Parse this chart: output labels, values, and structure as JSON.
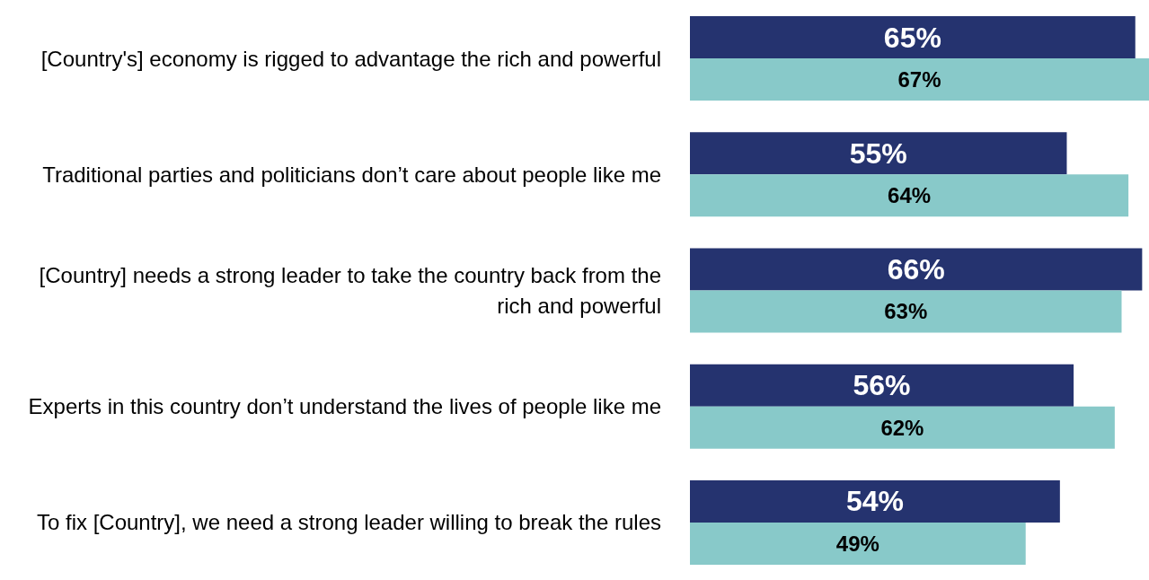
{
  "chart_data": {
    "type": "bar",
    "orientation": "horizontal",
    "categories": [
      "[Country's] economy is rigged to advantage the rich and powerful",
      "Traditional parties and politicians don’t care about people like me",
      "[Country] needs a strong leader to take the country back from the rich and powerful",
      "Experts in this country don’t understand the lives of people like me",
      "To fix [Country], we need a strong leader willing to break the rules"
    ],
    "series": [
      {
        "color": "#25336f",
        "values": [
          65,
          55,
          66,
          56,
          54
        ],
        "value_labels": [
          "65%",
          "55%",
          "66%",
          "56%",
          "54%"
        ]
      },
      {
        "color": "#88c9c9",
        "values": [
          67,
          64,
          63,
          62,
          49
        ],
        "value_labels": [
          "67%",
          "64%",
          "63%",
          "62%",
          "49%"
        ]
      }
    ],
    "xlim": [
      0,
      67
    ],
    "tick_labels": "y"
  }
}
